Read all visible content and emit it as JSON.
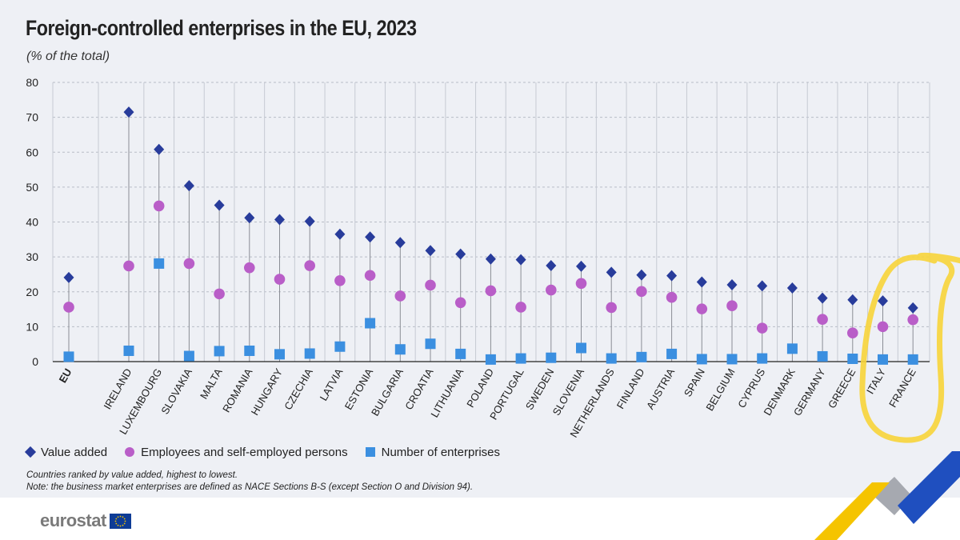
{
  "title": "Foreign-controlled enterprises in the EU, 2023",
  "subtitle": "(% of the total)",
  "chart_data": {
    "type": "scatter",
    "categories": [
      "EU",
      "IRELAND",
      "LUXEMBOURG",
      "SLOVAKIA",
      "MALTA",
      "ROMANIA",
      "HUNGARY",
      "CZECHIA",
      "LATVIA",
      "ESTONIA",
      "BULGARIA",
      "CROATIA",
      "LITHUANIA",
      "POLAND",
      "PORTUGAL",
      "SWEDEN",
      "SLOVENIA",
      "NETHERLANDS",
      "FINLAND",
      "AUSTRIA",
      "SPAIN",
      "BELGIUM",
      "CYPRUS",
      "DENMARK",
      "GERMANY",
      "GREECE",
      "ITALY",
      "FRANCE"
    ],
    "series": [
      {
        "name": "Value added",
        "marker": "diamond",
        "color": "#283c9b",
        "values": [
          24.1,
          71.5,
          60.8,
          50.4,
          44.8,
          41.2,
          40.7,
          40.2,
          36.5,
          35.7,
          34.1,
          31.8,
          30.8,
          29.4,
          29.2,
          27.5,
          27.3,
          25.6,
          24.8,
          24.6,
          22.8,
          22.0,
          21.7,
          21.1,
          18.2,
          17.7,
          17.4,
          15.4
        ]
      },
      {
        "name": "Employees and self-employed persons",
        "marker": "circle",
        "color": "#b95ec8",
        "values": [
          15.6,
          27.4,
          44.6,
          28.1,
          19.4,
          26.9,
          23.6,
          27.5,
          23.2,
          24.7,
          18.8,
          21.9,
          16.9,
          20.3,
          15.6,
          20.5,
          22.4,
          15.5,
          20.1,
          18.4,
          15.1,
          16.0,
          9.6,
          null,
          12.1,
          8.2,
          10.0,
          12.0
        ]
      },
      {
        "name": "Number of enterprises",
        "marker": "square",
        "color": "#3b8fe0",
        "values": [
          1.4,
          3.1,
          28.1,
          1.6,
          3.0,
          3.1,
          2.1,
          2.3,
          4.3,
          11.0,
          3.5,
          5.1,
          2.2,
          0.6,
          0.9,
          1.1,
          3.9,
          0.9,
          1.3,
          2.2,
          0.7,
          0.7,
          0.9,
          3.7,
          1.5,
          0.8,
          0.6,
          0.6
        ]
      }
    ],
    "ylim": [
      0,
      80
    ],
    "yticks": [
      0,
      10,
      20,
      30,
      40,
      50,
      60,
      70,
      80
    ],
    "grid": true,
    "xlabel": "",
    "ylabel": ""
  },
  "legend": {
    "value_added": "Value added",
    "employees": "Employees and self-employed persons",
    "enterprises": "Number of enterprises"
  },
  "notes": {
    "ranking": "Countries ranked by value added, highest to lowest.",
    "definition": "Note: the business market enterprises are defined as NACE Sections B-S (except Section O and Division 94)."
  },
  "footer": {
    "logo_text": "eurostat"
  },
  "colors": {
    "highlight": "#f7d43a",
    "brand_blue": "#1f4fbf",
    "brand_yellow": "#f5c400"
  }
}
